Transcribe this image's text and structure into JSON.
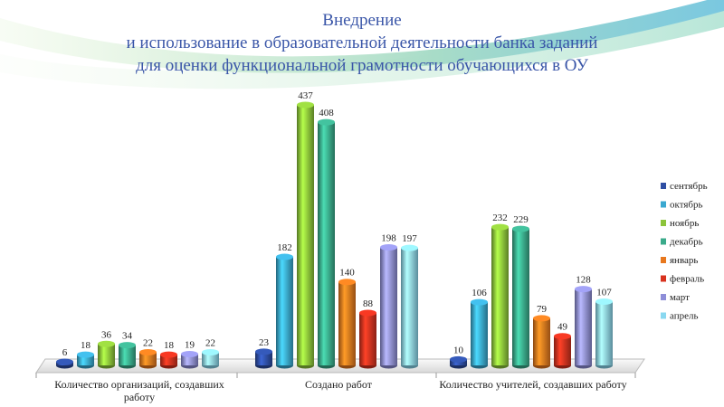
{
  "chart_data": {
    "type": "bar",
    "title": [
      "Внедрение",
      "и использование в образовательной деятельности банка заданий",
      "для оценки функциональной грамотности обучающихся в ОУ"
    ],
    "categories": [
      "Количество организаций, создавших работу",
      "Создано работ",
      "Количество учителей, создавших работу"
    ],
    "series": [
      {
        "name": "сентябрь",
        "color": "#2e4ea3",
        "values": [
          6,
          23,
          10
        ]
      },
      {
        "name": "октябрь",
        "color": "#3aa8d0",
        "values": [
          18,
          182,
          106
        ]
      },
      {
        "name": "ноябрь",
        "color": "#8cc43a",
        "values": [
          36,
          437,
          232
        ]
      },
      {
        "name": "декабрь",
        "color": "#3aaa8a",
        "values": [
          34,
          408,
          229
        ]
      },
      {
        "name": "январь",
        "color": "#e8781e",
        "values": [
          22,
          140,
          79
        ]
      },
      {
        "name": "февраль",
        "color": "#d8321e",
        "values": [
          18,
          88,
          49
        ]
      },
      {
        "name": "март",
        "color": "#8e8ed8",
        "values": [
          19,
          198,
          128
        ]
      },
      {
        "name": "апрель",
        "color": "#8ad8f0",
        "values": [
          22,
          197,
          107
        ]
      }
    ],
    "legend": "right"
  }
}
